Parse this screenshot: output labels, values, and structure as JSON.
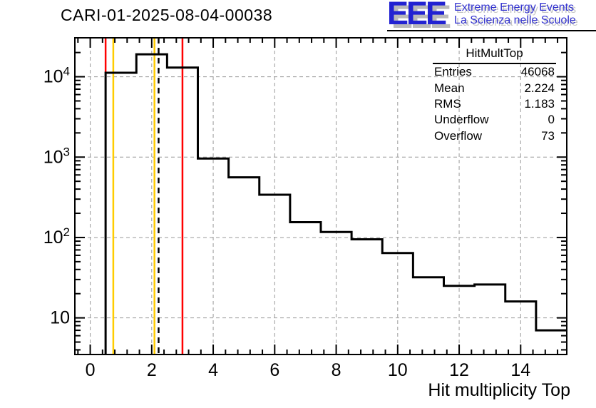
{
  "header": {
    "title": "CARI-01-2025-08-04-00038",
    "logo": {
      "acronym": "EEE",
      "line1": "Extreme Energy Events",
      "line2": "La Scienza nelle Scuole",
      "text_color": "#3232cf",
      "shadow_color": "#b9b9b9"
    }
  },
  "stats_box": {
    "title": "HitMultTop",
    "rows": [
      {
        "label": "Entries",
        "value": "46068"
      },
      {
        "label": "Mean",
        "value": "2.224"
      },
      {
        "label": "RMS",
        "value": "1.183"
      },
      {
        "label": "Underflow",
        "value": "0"
      },
      {
        "label": "Overflow",
        "value": "73"
      }
    ]
  },
  "chart_data": {
    "type": "bar",
    "title": "CARI-01-2025-08-04-00038",
    "xlabel": "Hit multiplicity Top",
    "ylabel": "",
    "x": [
      0,
      1,
      2,
      3,
      4,
      5,
      6,
      7,
      8,
      9,
      10,
      11,
      12,
      13,
      14,
      15
    ],
    "values": [
      0,
      11200,
      19000,
      13000,
      960,
      560,
      340,
      155,
      117,
      95,
      64,
      32,
      25,
      26,
      16,
      7
    ],
    "bin_width": 1,
    "xlim": [
      -0.5,
      15.5
    ],
    "ylim": [
      3.5,
      30500
    ],
    "yscale": "log",
    "xticks": [
      0,
      2,
      4,
      6,
      8,
      10,
      12,
      14
    ],
    "ytick_decades": [
      1,
      2,
      3,
      4
    ],
    "grid": "dashed",
    "legend": "none",
    "colors": {
      "histogram": "#000000",
      "grid": "#999999",
      "frame": "#000000",
      "red_marker": "#ff0000",
      "orange_marker": "#ffcc00",
      "mean_marker": "#000000"
    },
    "marker_lines": [
      {
        "name": "red-line-left",
        "x": 0.5,
        "color": "#ff0000",
        "dash": false,
        "stop_at_value": 11200
      },
      {
        "name": "orange-line-left",
        "x": 0.75,
        "color": "#ffcc00",
        "dash": false,
        "stop_at_value": null
      },
      {
        "name": "orange-line-right",
        "x": 2.09,
        "color": "#ffcc00",
        "dash": false,
        "stop_at_value": null
      },
      {
        "name": "mean-dashed-line",
        "x": 2.224,
        "color": "#000000",
        "dash": true,
        "stop_at_value": null
      },
      {
        "name": "red-line-right",
        "x": 3.0,
        "color": "#ff0000",
        "dash": false,
        "stop_at_value": null
      }
    ]
  }
}
